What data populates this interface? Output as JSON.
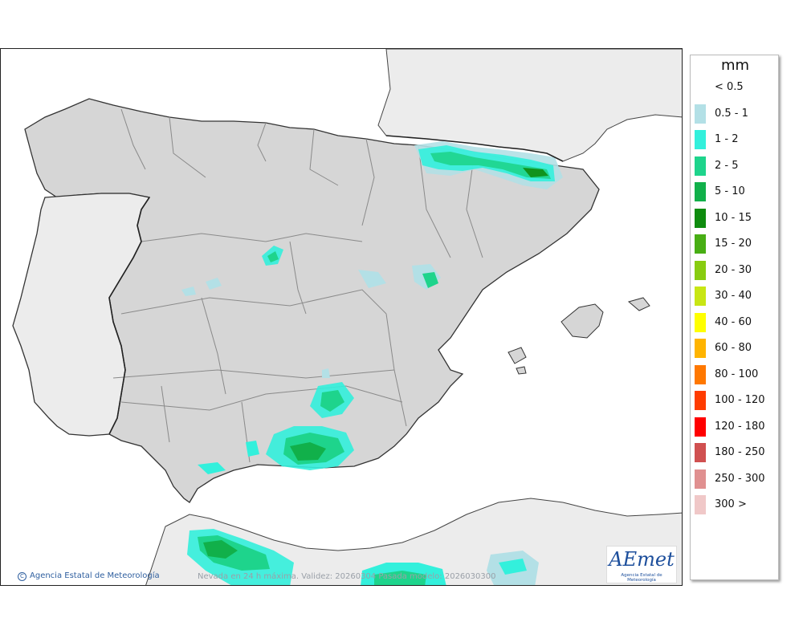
{
  "legend": {
    "title": "mm",
    "items": [
      {
        "label": "< 0.5",
        "color": "#ffffff"
      },
      {
        "label": "0.5 - 1",
        "color": "#b3e0e6"
      },
      {
        "label": "1 - 2",
        "color": "#33f0dc"
      },
      {
        "label": "2 - 5",
        "color": "#1ed48c"
      },
      {
        "label": "5 - 10",
        "color": "#11b04a"
      },
      {
        "label": "10 - 15",
        "color": "#0f8c0f"
      },
      {
        "label": "15 - 20",
        "color": "#48ae14"
      },
      {
        "label": "20 - 30",
        "color": "#88cc10"
      },
      {
        "label": "30 - 40",
        "color": "#c8e614"
      },
      {
        "label": "40 - 60",
        "color": "#ffff00"
      },
      {
        "label": "60 - 80",
        "color": "#ffb400"
      },
      {
        "label": "80 - 100",
        "color": "#ff7800"
      },
      {
        "label": "100 - 120",
        "color": "#ff3c00"
      },
      {
        "label": "120 - 180",
        "color": "#ff0000"
      },
      {
        "label": "180 - 250",
        "color": "#d05050"
      },
      {
        "label": "250 - 300",
        "color": "#e09090"
      },
      {
        "label": "300 >",
        "color": "#f0c8c8"
      }
    ]
  },
  "footer": {
    "copyright_symbol": "C",
    "agency": "Agencia Estatal de Meteorología",
    "caption": "Nevada en 24 h máxima. Validez: 20260304 Pasada modelo: 2026030300"
  },
  "logo": {
    "text": "AEmet",
    "subtitle": "Agencia Estatal de Meteorología"
  },
  "colors": {
    "land": "#d6d6d6",
    "foreign_land": "#ececec",
    "sea": "#ffffff",
    "border": "#333333",
    "region_border": "#8a8a8a"
  }
}
